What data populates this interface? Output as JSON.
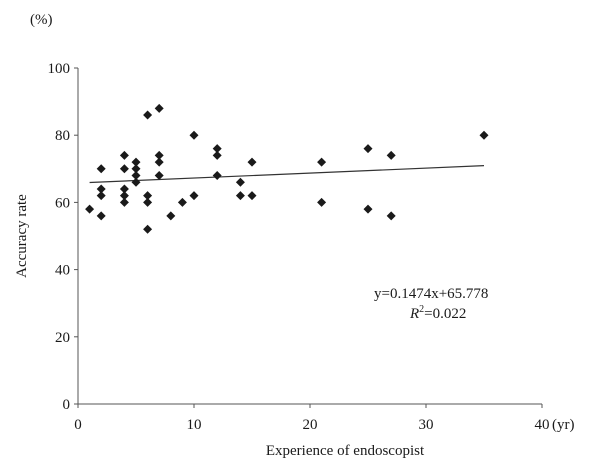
{
  "chart_data": {
    "type": "scatter",
    "xlabel": "Experience of endoscopist",
    "ylabel": "Accuracy rate",
    "x_unit": "(yr)",
    "y_unit": "(%)",
    "xlim": [
      0,
      40
    ],
    "ylim": [
      0,
      100
    ],
    "x_ticks": [
      "0",
      "10",
      "20",
      "30",
      "40"
    ],
    "y_ticks": [
      "0",
      "20",
      "40",
      "60",
      "80",
      "100"
    ],
    "grid": false,
    "series": [
      {
        "marker": "diamond",
        "color": "#1a1a1a",
        "points": [
          [
            1,
            58
          ],
          [
            2,
            70
          ],
          [
            2,
            64
          ],
          [
            2,
            62
          ],
          [
            2,
            56
          ],
          [
            4,
            74
          ],
          [
            4,
            70
          ],
          [
            4,
            64
          ],
          [
            4,
            62
          ],
          [
            4,
            60
          ],
          [
            5,
            72
          ],
          [
            5,
            70
          ],
          [
            5,
            68
          ],
          [
            5,
            66
          ],
          [
            6,
            86
          ],
          [
            6,
            62
          ],
          [
            6,
            60
          ],
          [
            6,
            52
          ],
          [
            7,
            88
          ],
          [
            7,
            74
          ],
          [
            7,
            72
          ],
          [
            7,
            68
          ],
          [
            8,
            56
          ],
          [
            9,
            60
          ],
          [
            10,
            80
          ],
          [
            10,
            62
          ],
          [
            12,
            76
          ],
          [
            12,
            74
          ],
          [
            12,
            68
          ],
          [
            14,
            66
          ],
          [
            14,
            62
          ],
          [
            15,
            72
          ],
          [
            15,
            62
          ],
          [
            21,
            72
          ],
          [
            21,
            60
          ],
          [
            25,
            76
          ],
          [
            25,
            58
          ],
          [
            27,
            74
          ],
          [
            27,
            56
          ],
          [
            35,
            80
          ]
        ]
      }
    ],
    "trendline": {
      "slope": 0.1474,
      "intercept": 65.778,
      "color": "#333333"
    },
    "annotations": {
      "equation": "y=0.1474x+65.778",
      "r2_prefix": "R",
      "r2_sup": "2",
      "r2_value": "=0.022"
    }
  }
}
